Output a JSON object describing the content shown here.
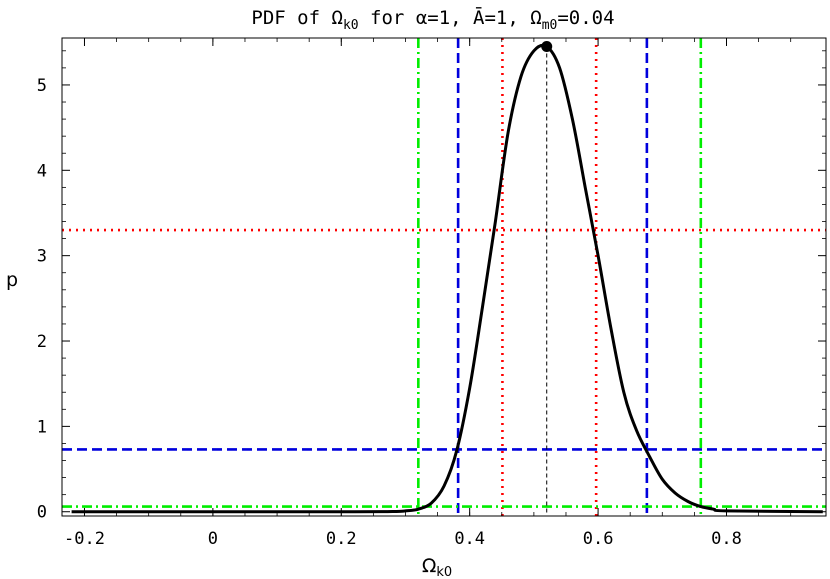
{
  "chart_data": {
    "type": "line",
    "title": {
      "pre": "PDF of ",
      "omega": "Ω",
      "omega_sub": "k0",
      "mid1": " for ",
      "alpha": "α",
      "mid2": "=1, ",
      "abar": "Ā",
      "mid3": "=1, ",
      "omega2": "Ω",
      "omega2_sub": "m0",
      "tail": "=0.04"
    },
    "xlabel": {
      "main": "Ω",
      "sub": "k0"
    },
    "ylabel": "p",
    "xlim": [
      -0.235,
      0.955
    ],
    "ylim": [
      -0.05,
      5.55
    ],
    "x_ticks": [
      {
        "value": -0.2,
        "label": "-0.2"
      },
      {
        "value": 0,
        "label": "0"
      },
      {
        "value": 0.2,
        "label": "0.2"
      },
      {
        "value": 0.4,
        "label": "0.4"
      },
      {
        "value": 0.6,
        "label": "0.6"
      },
      {
        "value": 0.8,
        "label": "0.8"
      }
    ],
    "y_ticks": [
      {
        "value": 0,
        "label": "0"
      },
      {
        "value": 1,
        "label": "1"
      },
      {
        "value": 2,
        "label": "2"
      },
      {
        "value": 3,
        "label": "3"
      },
      {
        "value": 4,
        "label": "4"
      },
      {
        "value": 5,
        "label": "5"
      }
    ],
    "pdf": {
      "x": [
        -0.22,
        0.2,
        0.28,
        0.3,
        0.32,
        0.34,
        0.36,
        0.38,
        0.4,
        0.42,
        0.44,
        0.46,
        0.48,
        0.5,
        0.52,
        0.54,
        0.56,
        0.58,
        0.6,
        0.62,
        0.64,
        0.66,
        0.68,
        0.7,
        0.72,
        0.74,
        0.76,
        0.78,
        0.8,
        0.95
      ],
      "y": [
        0.0,
        0.0,
        0.003,
        0.01,
        0.03,
        0.1,
        0.3,
        0.72,
        1.45,
        2.4,
        3.4,
        4.45,
        5.1,
        5.4,
        5.45,
        5.2,
        4.6,
        3.8,
        3.0,
        2.15,
        1.4,
        0.95,
        0.65,
        0.38,
        0.22,
        0.12,
        0.06,
        0.03,
        0.01,
        0.0
      ],
      "color": "#000000"
    },
    "peak": {
      "x": 0.52,
      "y": 5.45
    },
    "intervals": [
      {
        "level": "red-dotted",
        "color": "#ff0000",
        "style": "dotted",
        "p": 3.3,
        "x_lo": 0.451,
        "x_hi": 0.597
      },
      {
        "level": "blue-dashed",
        "color": "#0000dd",
        "style": "dashed",
        "p": 0.73,
        "x_lo": 0.382,
        "x_hi": 0.676
      },
      {
        "level": "green-dashdot",
        "color": "#00ee00",
        "style": "dashdot",
        "p": 0.06,
        "x_lo": 0.32,
        "x_hi": 0.76
      }
    ]
  }
}
